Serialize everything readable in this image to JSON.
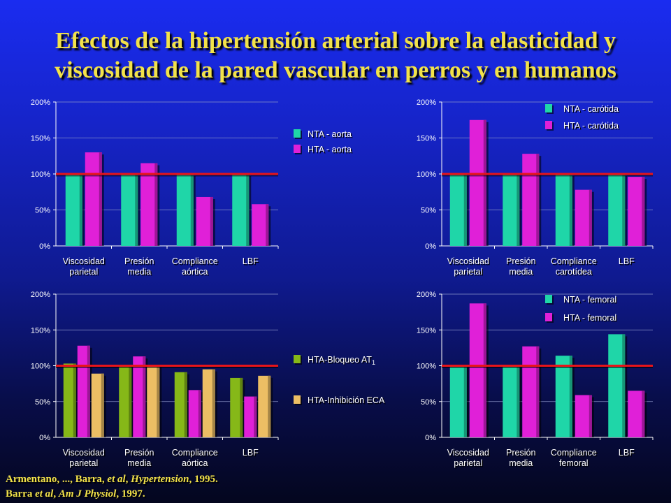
{
  "title": {
    "line1": "Efectos de la hipertensión arterial sobre la elasticidad y",
    "line2": "viscosidad de la pared vascular en perros y en humanos"
  },
  "references": {
    "ref1_prefix": "Armentano, ..., Barra, ",
    "ref1_etal": "et al",
    "ref1_sep": ", ",
    "ref1_journal": "Hypertension",
    "ref1_year": ", 1995.",
    "ref2_prefix": "Barra ",
    "ref2_etal": "et al",
    "ref2_sep": ", ",
    "ref2_journal": "Am J Physiol",
    "ref2_year": ", 1997."
  },
  "colors": {
    "nta": "#1fd6a8",
    "hta": "#e020d8",
    "at1": "#86b818",
    "eca": "#ecbe64",
    "refline": "#e8141a",
    "text": "#ffffff"
  },
  "chart_data": [
    {
      "type": "bar",
      "id": "aorta",
      "categories": [
        [
          "Viscosidad",
          "parietal"
        ],
        [
          "Presión",
          "media"
        ],
        [
          "Compliance",
          "aórtica"
        ],
        [
          "LBF"
        ]
      ],
      "series": [
        {
          "name": "NTA - aorta",
          "color": "nta",
          "values": [
            100,
            100,
            100,
            100
          ]
        },
        {
          "name": "HTA - aorta",
          "color": "hta",
          "values": [
            130,
            115,
            68,
            58
          ]
        }
      ],
      "yticks": [
        "0%",
        "50%",
        "100%",
        "150%",
        "200%"
      ],
      "ylim": [
        0,
        200
      ],
      "reference_line": 100,
      "legend_position": "right"
    },
    {
      "type": "bar",
      "id": "carotida",
      "categories": [
        [
          "Viscosidad",
          "parietal"
        ],
        [
          "Presión",
          "media"
        ],
        [
          "Compliance",
          "carotídea"
        ],
        [
          "LBF"
        ]
      ],
      "series": [
        {
          "name": "NTA - carótida",
          "color": "nta",
          "values": [
            100,
            100,
            100,
            100
          ]
        },
        {
          "name": "HTA - carótida",
          "color": "hta",
          "values": [
            175,
            128,
            78,
            96
          ]
        }
      ],
      "yticks": [
        "0%",
        "50%",
        "100%",
        "150%",
        "200%"
      ],
      "ylim": [
        0,
        200
      ],
      "reference_line": 100,
      "legend_position": "top-right"
    },
    {
      "type": "bar",
      "id": "bloqueo",
      "categories": [
        [
          "Viscosidad",
          "parietal"
        ],
        [
          "Presión",
          "media"
        ],
        [
          "Compliance",
          "aórtica"
        ],
        [
          "LBF"
        ]
      ],
      "series": [
        {
          "name": "HTA-Bloqueo AT",
          "sub": "1",
          "color": "at1",
          "values": [
            103,
            101,
            91,
            83
          ]
        },
        {
          "name": "",
          "color": "hta",
          "values": [
            128,
            113,
            66,
            57
          ]
        },
        {
          "name": "HTA-Inhibición ECA",
          "color": "eca",
          "values": [
            89,
            101,
            95,
            86
          ]
        }
      ],
      "yticks": [
        "0%",
        "50%",
        "100%",
        "150%",
        "200%"
      ],
      "ylim": [
        0,
        200
      ],
      "reference_line": 100,
      "legend_position": "right"
    },
    {
      "type": "bar",
      "id": "femoral",
      "categories": [
        [
          "Viscosidad",
          "parietal"
        ],
        [
          "Presión",
          "media"
        ],
        [
          "Compliance",
          "femoral"
        ],
        [
          "LBF"
        ]
      ],
      "series": [
        {
          "name": "NTA - femoral",
          "color": "nta",
          "values": [
            100,
            100,
            114,
            144
          ]
        },
        {
          "name": "HTA - femoral",
          "color": "hta",
          "values": [
            187,
            127,
            59,
            65
          ]
        }
      ],
      "yticks": [
        "0%",
        "50%",
        "100%",
        "150%",
        "200%"
      ],
      "ylim": [
        0,
        200
      ],
      "reference_line": 100,
      "legend_position": "top-right"
    }
  ]
}
